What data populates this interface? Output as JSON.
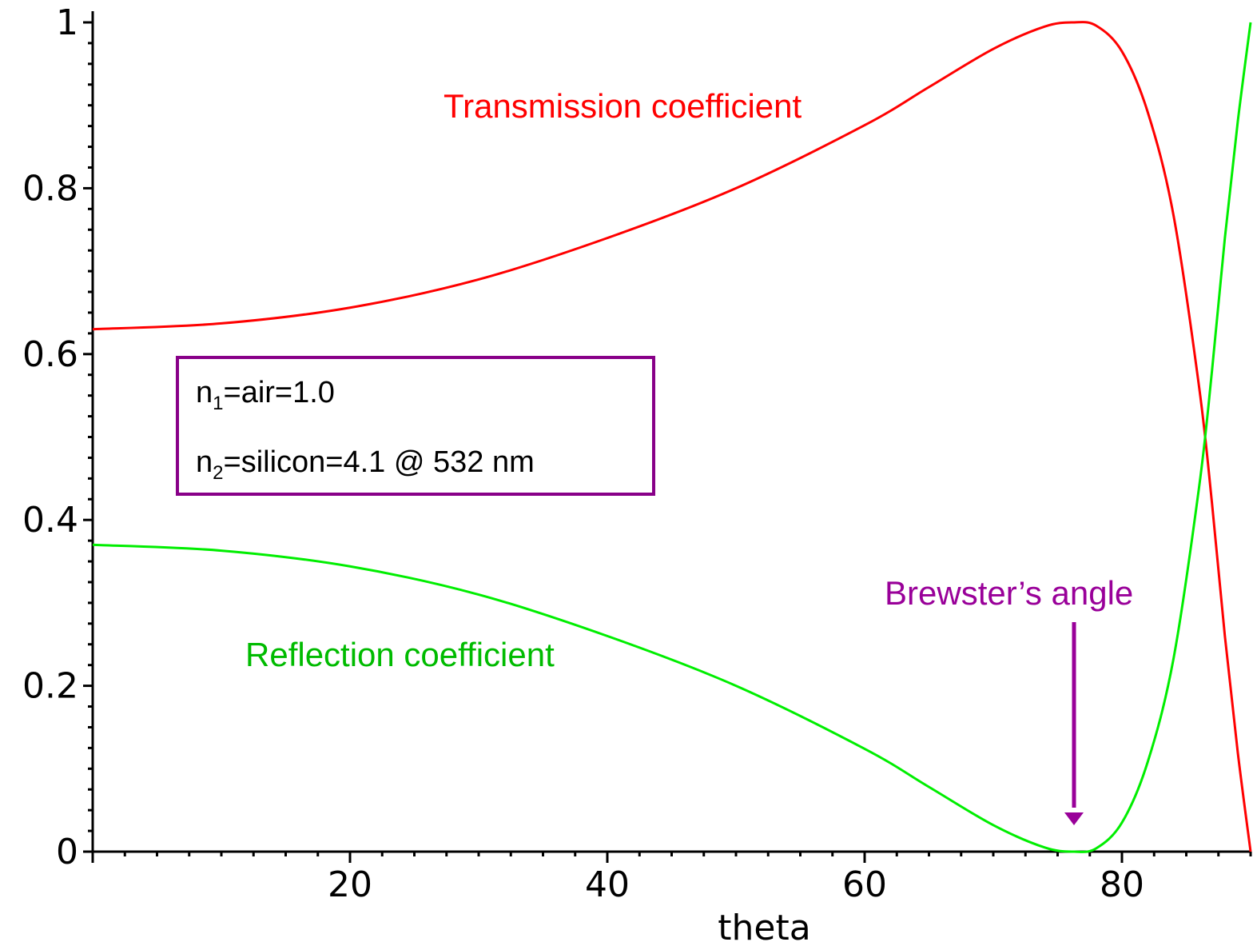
{
  "chart_data": {
    "type": "line",
    "xlabel": "theta",
    "ylabel": "",
    "xlim": [
      0,
      90
    ],
    "ylim": [
      0,
      1
    ],
    "x_ticks": [
      20,
      40,
      60,
      80
    ],
    "y_ticks": [
      0,
      0.2,
      0.4,
      0.6,
      0.8,
      1
    ],
    "x_tick_labels": [
      "20",
      "40",
      "60",
      "80"
    ],
    "y_tick_labels": [
      "0",
      "0.2",
      "0.4",
      "0.6",
      "0.8",
      "1"
    ],
    "grid": false,
    "series": [
      {
        "name": "Transmission coefficient",
        "color": "#ff0000",
        "x": [
          0,
          10,
          20,
          30,
          40,
          50,
          60,
          65,
          70,
          74,
          76.3,
          78,
          80,
          82,
          84,
          86,
          87,
          88,
          89,
          90
        ],
        "y": [
          0.63,
          0.637,
          0.656,
          0.69,
          0.74,
          0.8,
          0.876,
          0.922,
          0.968,
          0.995,
          1.0,
          0.996,
          0.965,
          0.892,
          0.768,
          0.56,
          0.42,
          0.26,
          0.12,
          0
        ]
      },
      {
        "name": "Reflection coefficient",
        "color": "#00ee00",
        "x": [
          0,
          10,
          20,
          30,
          40,
          50,
          60,
          65,
          70,
          74,
          76.3,
          78,
          80,
          82,
          84,
          86,
          87,
          88,
          89,
          90
        ],
        "y": [
          0.37,
          0.363,
          0.344,
          0.31,
          0.26,
          0.2,
          0.124,
          0.078,
          0.032,
          0.005,
          0.0,
          0.004,
          0.035,
          0.108,
          0.232,
          0.44,
          0.58,
          0.74,
          0.88,
          1.0
        ]
      }
    ],
    "annotations": [
      {
        "text": "Brewster’s angle",
        "x": 76.3,
        "y": 0.0,
        "color": "#990099"
      }
    ],
    "legend_box": {
      "line1": {
        "base": "n",
        "sub": "1",
        "rest": "=air=1.0"
      },
      "line2": {
        "base": "n",
        "sub": "2",
        "rest": "=silicon=4.1 @ 532 nm"
      },
      "border_color": "#880088"
    }
  }
}
